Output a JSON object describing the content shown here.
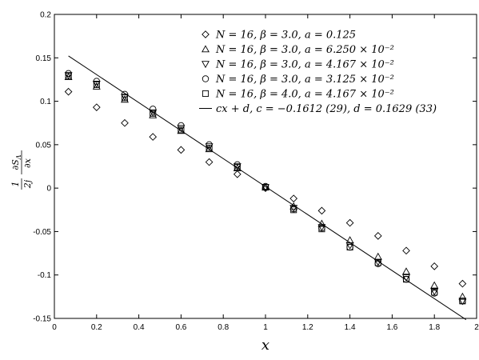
{
  "chart_data": {
    "type": "scatter",
    "xlabel": "x",
    "ylabel_parts": {
      "lead": "1",
      "lead_den": "2j",
      "num": "∂S",
      "num_sub": "Λ",
      "den": "∂x"
    },
    "xlim": [
      0,
      2
    ],
    "ylim": [
      -0.15,
      0.2
    ],
    "x_ticks": [
      "0",
      "0.2",
      "0.4",
      "0.6",
      "0.8",
      "1",
      "1.2",
      "1.4",
      "1.6",
      "1.8",
      "2"
    ],
    "y_ticks": [
      "-0.15",
      "-0.1",
      "-0.05",
      "0",
      "0.05",
      "0.1",
      "0.15",
      "0.2"
    ],
    "legend_position": "top-right",
    "series": [
      {
        "name": "N = 16,  β = 3.0,  a = 0.125",
        "marker": "diamond",
        "x": [
          0.0667,
          0.2,
          0.3333,
          0.4667,
          0.6,
          0.7333,
          0.8667,
          1.0,
          1.1333,
          1.2667,
          1.4,
          1.5333,
          1.6667,
          1.8,
          1.9333
        ],
        "y": [
          0.111,
          0.093,
          0.075,
          0.059,
          0.044,
          0.03,
          0.016,
          0.0,
          -0.012,
          -0.026,
          -0.04,
          -0.055,
          -0.072,
          -0.09,
          -0.11
        ]
      },
      {
        "name": "N = 16,  β = 3.0,  a = 6.250 × 10⁻²",
        "marker": "triangle-up",
        "x": [
          0.0667,
          0.2,
          0.3333,
          0.4667,
          0.6,
          0.7333,
          0.8667,
          1.0,
          1.1333,
          1.2667,
          1.4,
          1.5333,
          1.6667,
          1.8,
          1.9333
        ],
        "y": [
          0.128,
          0.117,
          0.102,
          0.084,
          0.066,
          0.045,
          0.023,
          0.001,
          -0.021,
          -0.041,
          -0.06,
          -0.079,
          -0.096,
          -0.112,
          -0.125
        ]
      },
      {
        "name": "N = 16,  β = 3.0,  a = 4.167 × 10⁻²",
        "marker": "triangle-down",
        "x": [
          0.0667,
          0.2,
          0.3333,
          0.4667,
          0.6,
          0.7333,
          0.8667,
          1.0,
          1.1333,
          1.2667,
          1.4,
          1.5333,
          1.6667,
          1.8,
          1.9333
        ],
        "y": [
          0.13,
          0.12,
          0.105,
          0.087,
          0.069,
          0.048,
          0.025,
          0.001,
          -0.023,
          -0.045,
          -0.066,
          -0.085,
          -0.103,
          -0.119,
          -0.13
        ]
      },
      {
        "name": "N = 16,  β = 3.0,  a = 3.125 × 10⁻²",
        "marker": "circle",
        "x": [
          0.0667,
          0.2,
          0.3333,
          0.4667,
          0.6,
          0.7333,
          0.8667,
          1.0,
          1.1333,
          1.2667,
          1.4,
          1.5333,
          1.6667,
          1.8,
          1.9333
        ],
        "y": [
          0.132,
          0.123,
          0.108,
          0.091,
          0.072,
          0.05,
          0.027,
          0.002,
          -0.024,
          -0.046,
          -0.068,
          -0.087,
          -0.105,
          -0.121,
          -0.13
        ]
      },
      {
        "name": "N = 16,  β = 4.0,  a = 4.167 × 10⁻²",
        "marker": "square",
        "x": [
          0.0667,
          0.2,
          0.3333,
          0.4667,
          0.6,
          0.7333,
          0.8667,
          1.0,
          1.1333,
          1.2667,
          1.4,
          1.5333,
          1.6667,
          1.8,
          1.9333
        ],
        "y": [
          0.129,
          0.119,
          0.104,
          0.086,
          0.067,
          0.046,
          0.024,
          0.001,
          -0.025,
          -0.047,
          -0.068,
          -0.086,
          -0.105,
          -0.12,
          -0.13
        ]
      }
    ],
    "fit": {
      "name": "cx + d,  c = −0.1612 (29),  d = 0.1629 (33)",
      "c": -0.1612,
      "d": 0.1629,
      "x_range": [
        0.0667,
        1.95
      ]
    }
  }
}
